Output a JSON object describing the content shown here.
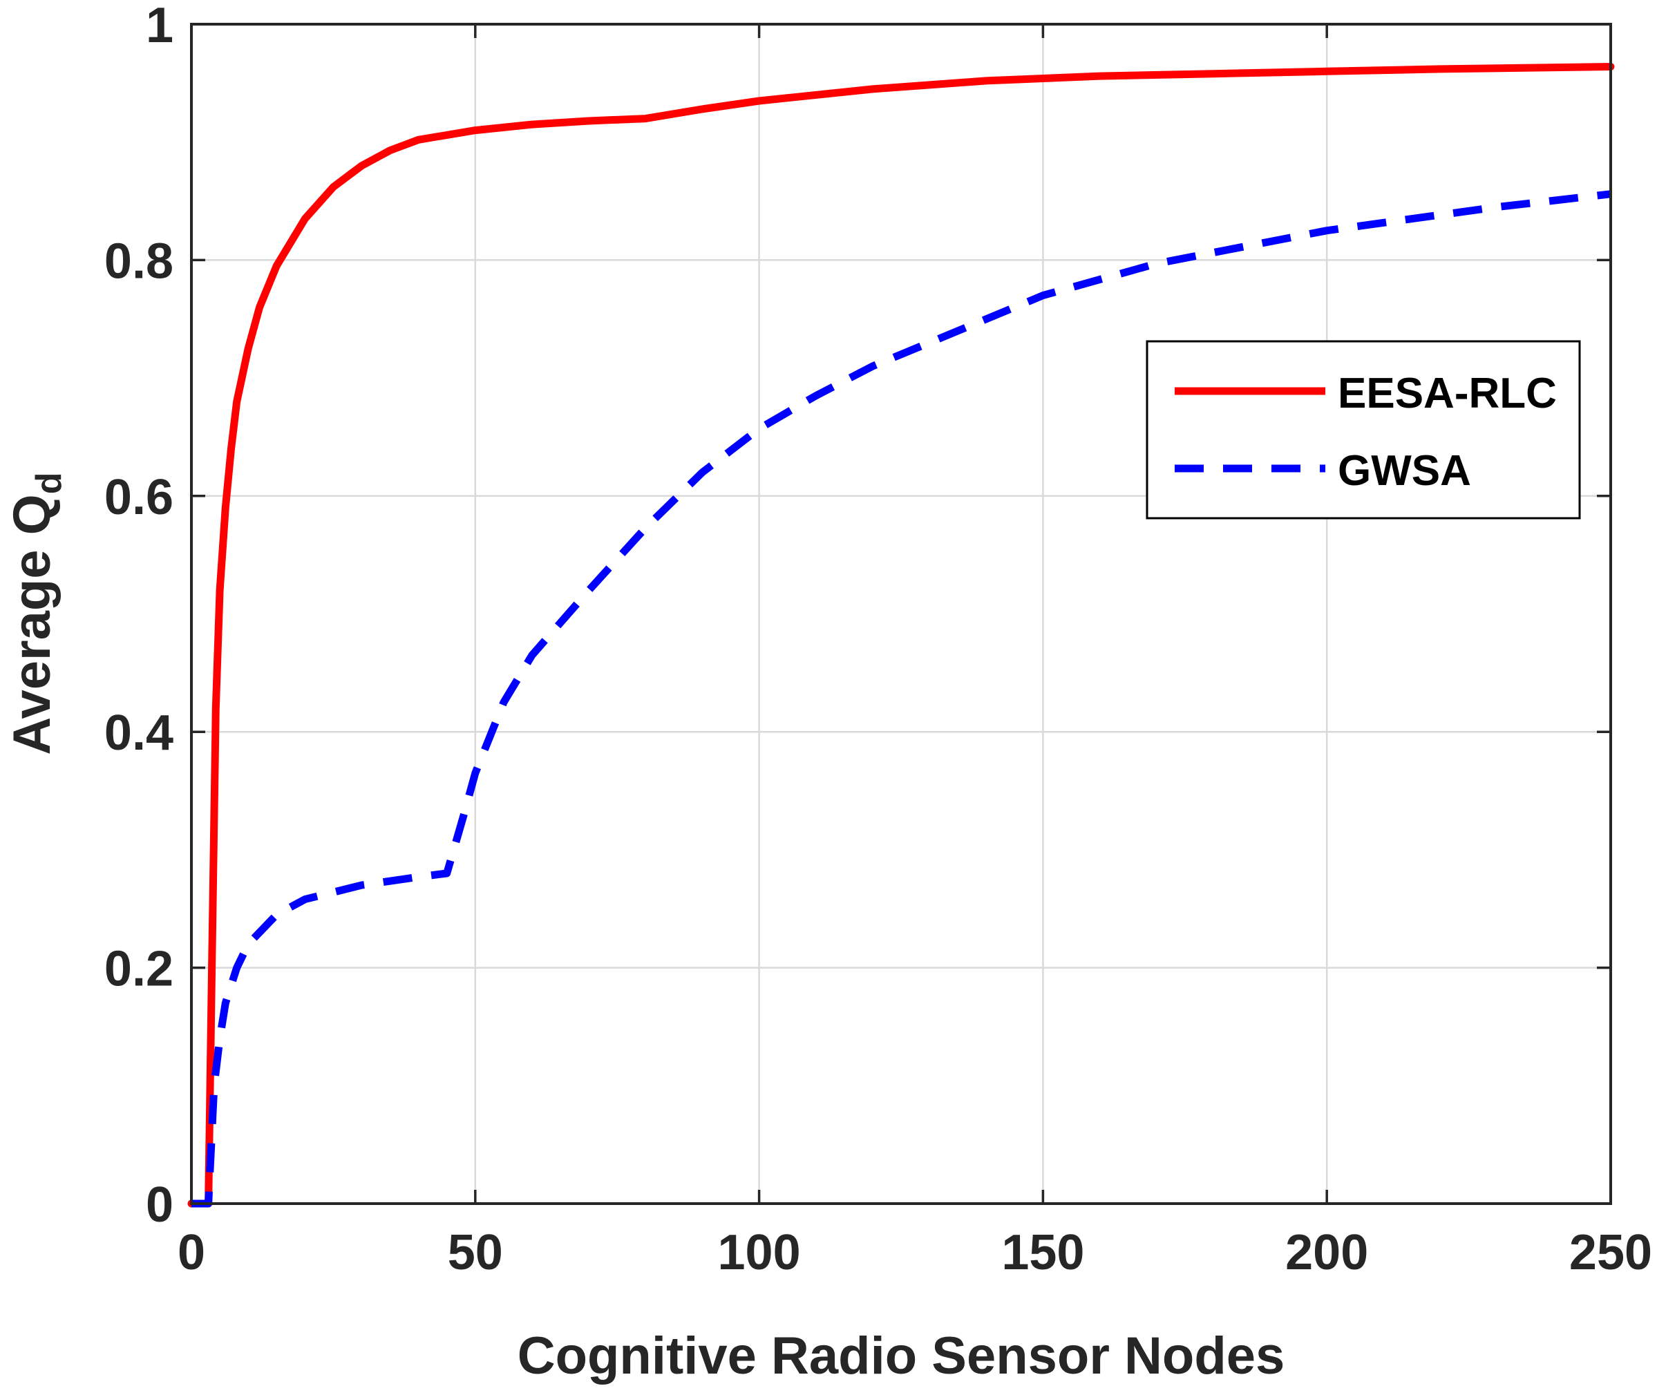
{
  "chart_data": {
    "type": "line",
    "xlabel": "Cognitive Radio Sensor Nodes",
    "ylabel_main": "Average Q",
    "ylabel_sub": "d",
    "xlim": [
      0,
      250
    ],
    "ylim": [
      0,
      1
    ],
    "xticks": [
      0,
      50,
      100,
      150,
      200,
      250
    ],
    "yticks": [
      0,
      0.2,
      0.4,
      0.6,
      0.8,
      1
    ],
    "xtick_labels": [
      "0",
      "50",
      "100",
      "150",
      "200",
      "250"
    ],
    "ytick_labels": [
      "0",
      "0.2",
      "0.4",
      "0.6",
      "0.8",
      "1"
    ],
    "grid": true,
    "legend_position": "right",
    "series": [
      {
        "name": "EESA-RLC",
        "color": "#ff0000",
        "style": "solid",
        "x": [
          0,
          2,
          3,
          3.6,
          4.3,
          5,
          6,
          7,
          8,
          10,
          12,
          15,
          20,
          25,
          30,
          35,
          40,
          50,
          60,
          70,
          80,
          90,
          100,
          120,
          140,
          160,
          180,
          200,
          220,
          250
        ],
        "y": [
          0,
          0,
          0,
          0.2,
          0.42,
          0.52,
          0.59,
          0.64,
          0.68,
          0.725,
          0.76,
          0.795,
          0.835,
          0.862,
          0.88,
          0.893,
          0.902,
          0.91,
          0.915,
          0.918,
          0.92,
          0.928,
          0.935,
          0.945,
          0.952,
          0.956,
          0.958,
          0.96,
          0.962,
          0.964
        ]
      },
      {
        "name": "GWSA",
        "color": "#0000ff",
        "style": "dashed",
        "x": [
          0,
          2,
          3,
          4,
          5,
          6,
          8,
          10,
          15,
          20,
          30,
          40,
          45,
          48,
          50,
          55,
          60,
          70,
          80,
          90,
          100,
          110,
          120,
          130,
          150,
          170,
          200,
          230,
          250
        ],
        "y": [
          0,
          0,
          0,
          0.1,
          0.14,
          0.17,
          0.2,
          0.22,
          0.245,
          0.258,
          0.27,
          0.277,
          0.28,
          0.33,
          0.365,
          0.425,
          0.465,
          0.52,
          0.573,
          0.62,
          0.657,
          0.685,
          0.71,
          0.73,
          0.77,
          0.797,
          0.825,
          0.845,
          0.856
        ]
      }
    ]
  }
}
